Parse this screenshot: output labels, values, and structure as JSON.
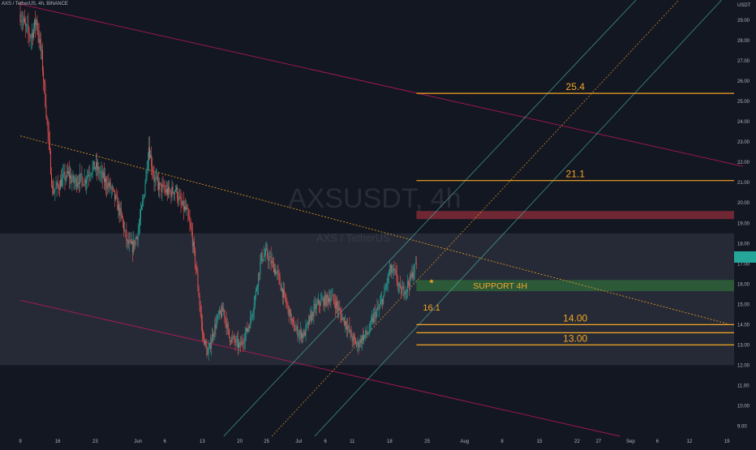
{
  "header": {
    "pair": "AXS / TetherUS, 4h, BINANCE"
  },
  "watermark": {
    "symbol": "AXSUSDT, 4h",
    "description": "AXS / TetherUS"
  },
  "colors": {
    "background": "#131722",
    "up": "#26a69a",
    "down": "#ef5350",
    "level_line": "#f5a623",
    "channel_line": "#c2185b",
    "trend_line": "#f5a623",
    "support_zone": "#2e5f3a",
    "resistance_zone": "#7a2a35",
    "range_box": "#2a2e39"
  },
  "chart_data": {
    "type": "candlestick",
    "symbol": "AXSUSDT",
    "timeframe": "4h",
    "exchange": "BINANCE",
    "y_axis": {
      "label": "USDT",
      "min": 8.5,
      "max": 30.0,
      "ticks": [
        9.0,
        10.0,
        11.0,
        12.0,
        13.0,
        14.0,
        15.0,
        16.0,
        17.0,
        18.0,
        19.0,
        20.0,
        21.0,
        22.0,
        23.0,
        24.0,
        25.0,
        26.0,
        27.0,
        28.0,
        29.0
      ],
      "tick_labels": [
        "9.00",
        "10.00",
        "11.00",
        "12.00",
        "13.00",
        "14.00",
        "15.00",
        "16.00",
        "17.00",
        "18.00",
        "19.00",
        "20.00",
        "21.00",
        "22.00",
        "23.00",
        "24.00",
        "25.00",
        "26.00",
        "27.00",
        "28.00",
        "29.00"
      ],
      "last_price": 17.05
    },
    "x_axis": {
      "ticks": [
        {
          "day": 0,
          "label": "9"
        },
        {
          "day": 7,
          "label": "16"
        },
        {
          "day": 14,
          "label": "23"
        },
        {
          "day": 22,
          "label": "Jun"
        },
        {
          "day": 27,
          "label": "6"
        },
        {
          "day": 34,
          "label": "13"
        },
        {
          "day": 41,
          "label": "20"
        },
        {
          "day": 46,
          "label": "25"
        },
        {
          "day": 52,
          "label": "Jul"
        },
        {
          "day": 57,
          "label": "6"
        },
        {
          "day": 62,
          "label": "11"
        },
        {
          "day": 69,
          "label": "18"
        },
        {
          "day": 76,
          "label": "25"
        },
        {
          "day": 83,
          "label": "Aug"
        },
        {
          "day": 90,
          "label": "8"
        },
        {
          "day": 97,
          "label": "15"
        },
        {
          "day": 104,
          "label": "22"
        },
        {
          "day": 108,
          "label": "27"
        },
        {
          "day": 114,
          "label": "Sep"
        },
        {
          "day": 119,
          "label": "6"
        },
        {
          "day": 125,
          "label": "12"
        },
        {
          "day": 132,
          "label": "19"
        }
      ]
    },
    "price_path": [
      [
        0,
        29.3
      ],
      [
        1,
        28.6
      ],
      [
        2,
        28.2
      ],
      [
        3,
        29.0
      ],
      [
        4,
        27.2
      ],
      [
        5,
        24.0
      ],
      [
        6,
        20.6
      ],
      [
        7,
        20.8
      ],
      [
        8,
        21.2
      ],
      [
        9,
        21.4
      ],
      [
        10,
        21.0
      ],
      [
        11,
        21.2
      ],
      [
        12,
        21.1
      ],
      [
        13,
        21.6
      ],
      [
        14,
        21.8
      ],
      [
        15,
        21.4
      ],
      [
        16,
        21.0
      ],
      [
        17,
        20.7
      ],
      [
        18,
        20.0
      ],
      [
        19,
        19.2
      ],
      [
        20,
        18.0
      ],
      [
        21,
        17.8
      ],
      [
        22,
        18.6
      ],
      [
        23,
        20.2
      ],
      [
        24,
        22.8
      ],
      [
        25,
        21.2
      ],
      [
        26,
        20.8
      ],
      [
        27,
        20.6
      ],
      [
        28,
        20.5
      ],
      [
        29,
        20.7
      ],
      [
        30,
        19.9
      ],
      [
        31,
        19.6
      ],
      [
        32,
        18.5
      ],
      [
        33,
        16.4
      ],
      [
        34,
        13.6
      ],
      [
        35,
        12.5
      ],
      [
        36,
        13.6
      ],
      [
        37,
        14.4
      ],
      [
        38,
        14.7
      ],
      [
        39,
        13.4
      ],
      [
        40,
        13.2
      ],
      [
        41,
        12.9
      ],
      [
        42,
        13.5
      ],
      [
        43,
        14.2
      ],
      [
        44,
        15.6
      ],
      [
        45,
        17.3
      ],
      [
        46,
        17.5
      ],
      [
        47,
        17.0
      ],
      [
        48,
        16.5
      ],
      [
        49,
        15.6
      ],
      [
        50,
        14.8
      ],
      [
        51,
        13.9
      ],
      [
        52,
        13.6
      ],
      [
        53,
        13.5
      ],
      [
        54,
        14.2
      ],
      [
        55,
        14.8
      ],
      [
        56,
        15.1
      ],
      [
        57,
        15.2
      ],
      [
        58,
        15.4
      ],
      [
        59,
        15.0
      ],
      [
        60,
        14.4
      ],
      [
        61,
        14.0
      ],
      [
        62,
        13.3
      ],
      [
        63,
        13.0
      ],
      [
        64,
        13.4
      ],
      [
        65,
        13.6
      ],
      [
        66,
        14.4
      ],
      [
        67,
        14.8
      ],
      [
        68,
        15.5
      ],
      [
        69,
        16.7
      ],
      [
        70,
        16.5
      ],
      [
        71,
        15.6
      ],
      [
        72,
        15.8
      ],
      [
        73,
        16.3
      ],
      [
        74,
        17.05
      ]
    ],
    "price_extremes": {
      "high": 29.6,
      "low": 12.2
    },
    "horizontal_levels": [
      {
        "price": 25.4,
        "label": "25.4",
        "from_day": 74
      },
      {
        "price": 21.1,
        "label": "21.1",
        "from_day": 74
      },
      {
        "price": 14.0,
        "label": "14.00",
        "from_day": 74
      },
      {
        "price": 13.6,
        "label": "",
        "from_day": 74
      },
      {
        "price": 13.0,
        "label": "13.00",
        "from_day": 74
      }
    ],
    "zones": [
      {
        "kind": "range",
        "from_price": 12.0,
        "to_price": 18.5,
        "label": ""
      },
      {
        "kind": "resistance",
        "from_price": 19.2,
        "to_price": 19.6,
        "from_day": 74,
        "label": ""
      },
      {
        "kind": "support",
        "from_price": 15.65,
        "to_price": 16.2,
        "from_day": 74,
        "label": "SUPPORT 4H"
      }
    ],
    "support_value_label": "16.1",
    "channel_lines": [
      {
        "p1": [
          0,
          29.8
        ],
        "p2": [
          135,
          21.8
        ]
      },
      {
        "p1": [
          0,
          15.2
        ],
        "p2": [
          112,
          8.5
        ]
      }
    ],
    "trend_line": {
      "p1": [
        0,
        23.3
      ],
      "p2": [
        132,
        14.05
      ],
      "style": "dashed"
    },
    "rising_channel": [
      {
        "p1": [
          38,
          8.5
        ],
        "p2": [
          115,
          30.0
        ],
        "style": "solid"
      },
      {
        "p1": [
          47,
          8.5
        ],
        "p2": [
          123,
          30.0
        ],
        "style": "dashed"
      },
      {
        "p1": [
          55,
          8.5
        ],
        "p2": [
          131,
          30.0
        ],
        "style": "solid"
      }
    ]
  }
}
